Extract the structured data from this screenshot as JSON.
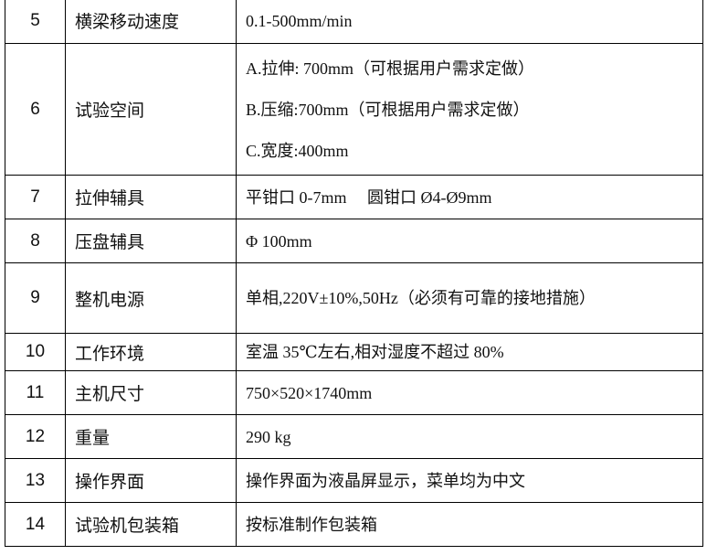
{
  "table": {
    "rows": [
      {
        "no": "5",
        "item": "横梁移动速度",
        "lines": [
          "0.1-500mm/min"
        ]
      },
      {
        "no": "6",
        "item": "试验空间",
        "lines": [
          "A.拉伸: 700mm（可根据用户需求定做）",
          "B.压缩:700mm（可根据用户需求定做）",
          "C.宽度:400mm"
        ]
      },
      {
        "no": "7",
        "item": "拉伸辅具",
        "lines": [
          "平钳口 0-7mm     圆钳口 Ø4-Ø9mm"
        ]
      },
      {
        "no": "8",
        "item": "压盘辅具",
        "lines": [
          "Φ 100mm"
        ]
      },
      {
        "no": "9",
        "item": "整机电源",
        "lines": [
          "单相,220V±10%,50Hz（必须有可靠的接地措施）"
        ]
      },
      {
        "no": "10",
        "item": "工作环境",
        "lines": [
          "室温 35℃左右,相对湿度不超过 80%"
        ]
      },
      {
        "no": "11",
        "item": "主机尺寸",
        "lines": [
          "750×520×1740mm"
        ]
      },
      {
        "no": "12",
        "item": "重量",
        "lines": [
          "290 kg"
        ]
      },
      {
        "no": "13",
        "item": "操作界面",
        "lines": [
          "操作界面为液晶屏显示，菜单均为中文"
        ]
      },
      {
        "no": "14",
        "item": "试验机包装箱",
        "lines": [
          "按标准制作包装箱"
        ]
      }
    ]
  }
}
